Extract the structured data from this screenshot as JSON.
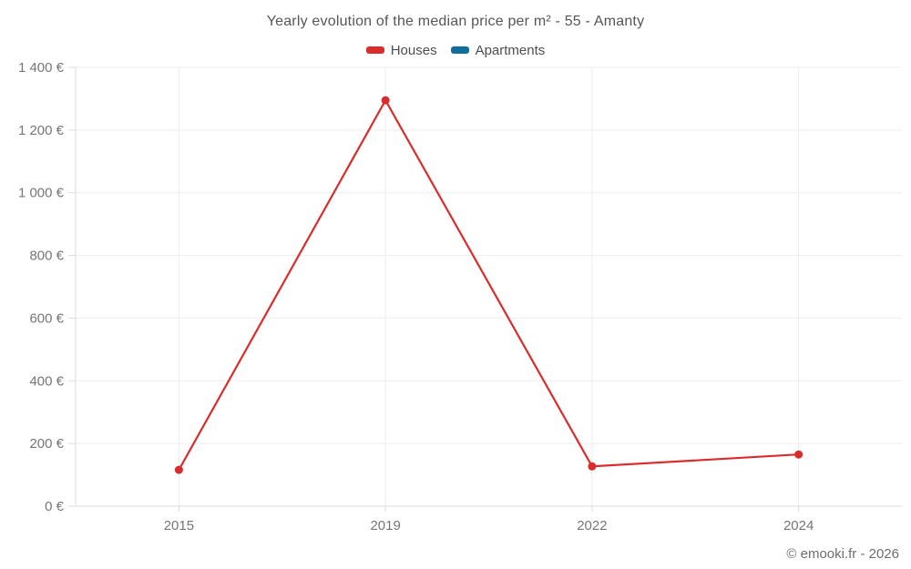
{
  "chart": {
    "title": "Yearly evolution of the median price per m² - 55 - Amanty"
  },
  "chart_data": {
    "type": "line",
    "title": "Yearly evolution of the median price per m² - 55 - Amanty",
    "categories": [
      "2015",
      "2019",
      "2022",
      "2024"
    ],
    "series": [
      {
        "name": "Houses",
        "color": "#d92d2d",
        "values": [
          116,
          1295,
          127,
          165
        ]
      },
      {
        "name": "Apartments",
        "color": "#0f6e9e",
        "values": [
          null,
          null,
          null,
          null
        ]
      }
    ],
    "xlabel": "",
    "ylabel": "",
    "ylim": [
      0,
      1400
    ],
    "ytick_step": 200,
    "ytick_suffix": " €",
    "grid": true,
    "legend_position": "top",
    "marker": "circle"
  },
  "footer": {
    "text": "© emooki.fr - 2026"
  },
  "colors": {
    "grid": "#eeeeee",
    "axis": "#dcdcdc",
    "tick_label": "#767676",
    "title_text": "#565657",
    "legend_text": "#4e4e4e",
    "footer_text": "#6e6e6e",
    "houses": "#d92d2d",
    "apartments": "#0f6e9e"
  }
}
